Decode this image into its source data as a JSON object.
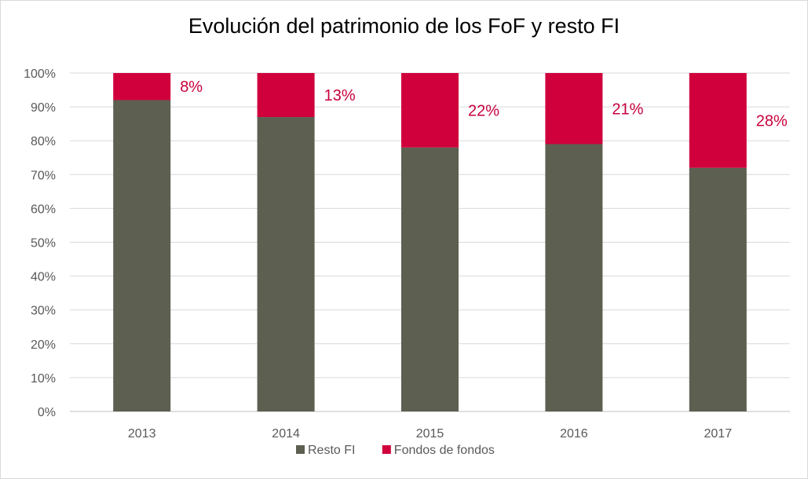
{
  "chart_data": {
    "type": "bar",
    "stacked": true,
    "title": "Evolución del patrimonio de los FoF y resto FI",
    "categories": [
      "2013",
      "2014",
      "2015",
      "2016",
      "2017"
    ],
    "series": [
      {
        "name": "Resto FI",
        "values": [
          92,
          87,
          78,
          79,
          72
        ],
        "color": "#5d5f51"
      },
      {
        "name": "Fondos de fondos",
        "values": [
          8,
          13,
          22,
          21,
          28
        ],
        "color": "#d0003c"
      }
    ],
    "data_labels": [
      "8%",
      "13%",
      "22%",
      "21%",
      "28%"
    ],
    "y_ticks": [
      "0%",
      "10%",
      "20%",
      "30%",
      "40%",
      "50%",
      "60%",
      "70%",
      "80%",
      "90%",
      "100%"
    ],
    "ylim": [
      0,
      100
    ],
    "grid": true,
    "legend": "bottom"
  }
}
